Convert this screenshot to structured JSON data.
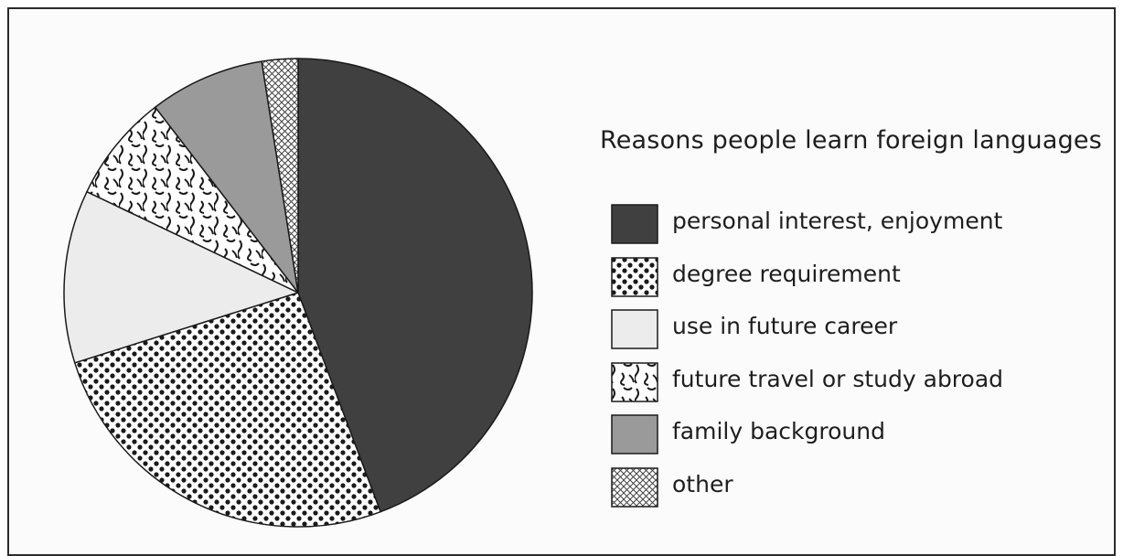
{
  "chart_data": {
    "type": "pie",
    "title": "Reasons people learn foreign languages",
    "unit": "percent",
    "start": "12 o'clock",
    "direction": "clockwise",
    "slices": [
      {
        "label": "personal interest, enjoyment",
        "value": 44.5,
        "fill": "#404040",
        "pattern": "solid-dark"
      },
      {
        "label": "degree requirement",
        "value": 26,
        "fill": "#ffffff",
        "pattern": "dots"
      },
      {
        "label": "use in future career",
        "value": 12,
        "fill": "#ececec",
        "pattern": "solid-light"
      },
      {
        "label": "future travel or study abroad",
        "value": 7.5,
        "fill": "#ffffff",
        "pattern": "squiggles"
      },
      {
        "label": "family background",
        "value": 8,
        "fill": "#9a9a9a",
        "pattern": "solid-mid"
      },
      {
        "label": "other",
        "value": 2.5,
        "fill": "#ffffff",
        "pattern": "crosshatch"
      }
    ],
    "legend_position": "right"
  }
}
